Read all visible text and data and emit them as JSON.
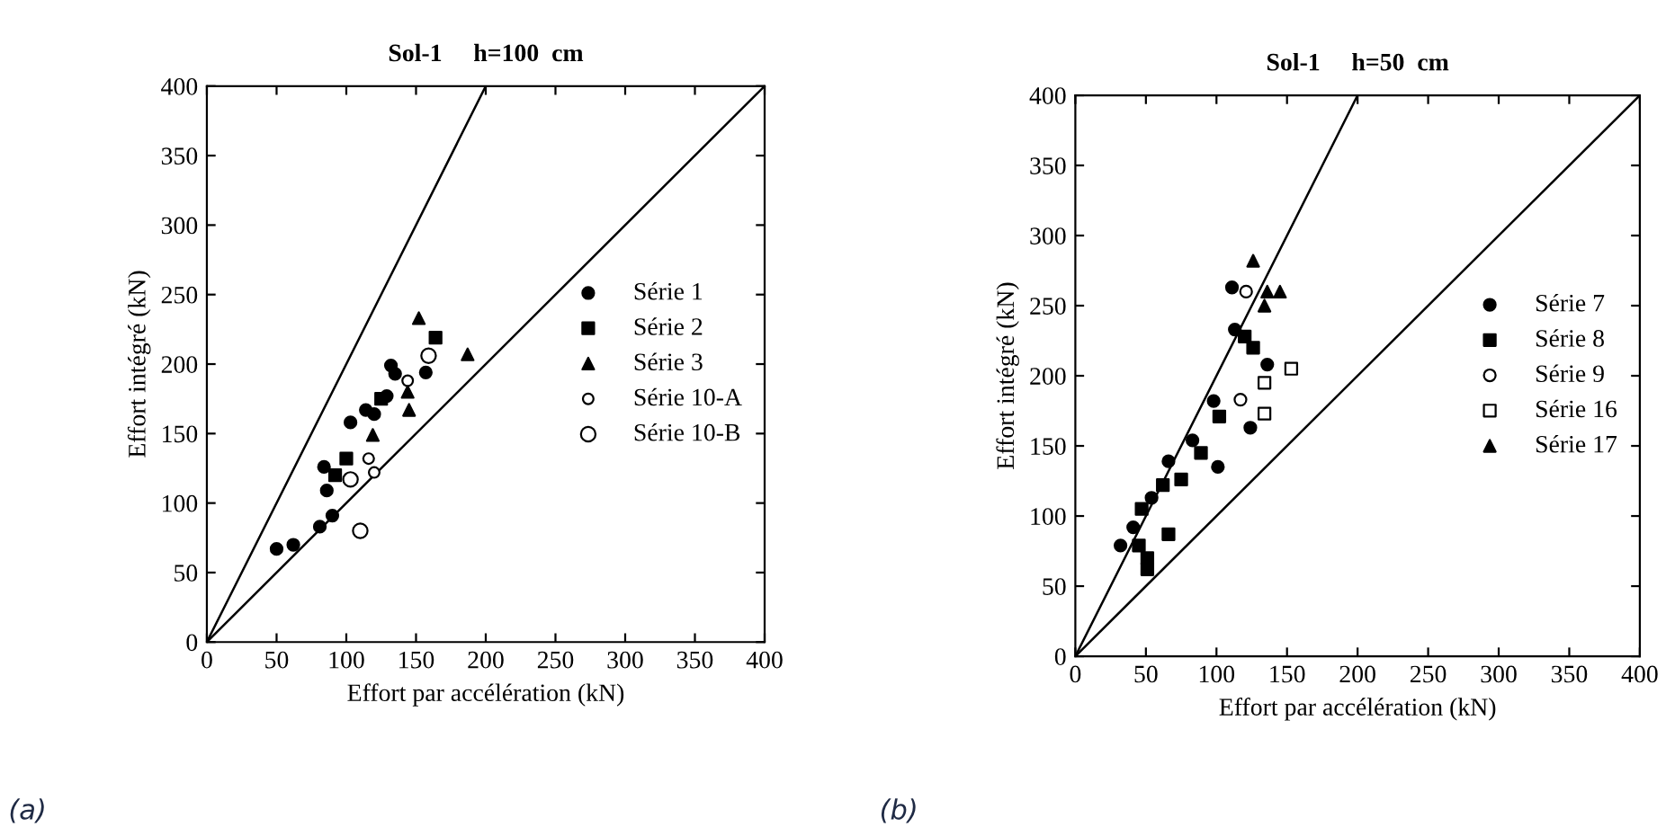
{
  "chart_data": [
    {
      "type": "scatter",
      "title": "Sol-1     h=100  cm",
      "xlabel": "Effort par accélération (kN)",
      "ylabel": "Effort intégré (kN)",
      "xlim": [
        0,
        400
      ],
      "ylim": [
        0,
        400
      ],
      "xticks": [
        0,
        50,
        100,
        150,
        200,
        250,
        300,
        350,
        400
      ],
      "yticks": [
        0,
        50,
        100,
        150,
        200,
        250,
        300,
        350,
        400
      ],
      "grid": false,
      "legend": "center right",
      "annotations": [
        "(a)"
      ],
      "series": [
        {
          "name": "Série 1",
          "color": "#000000",
          "marker": "circle",
          "x": [
            50,
            62,
            81,
            90,
            86,
            84,
            97,
            103,
            114,
            120,
            129,
            132,
            135,
            157
          ],
          "values": [
            67,
            70,
            83,
            91,
            109,
            126,
            null,
            158,
            167,
            164,
            177,
            199,
            193,
            194
          ]
        },
        {
          "name": "Série 2",
          "color": "#000000",
          "marker": "square",
          "x": [
            100,
            164,
            92,
            125
          ],
          "values": [
            132,
            219,
            120,
            175
          ]
        },
        {
          "name": "Série 3",
          "color": "#000000",
          "marker": "triangle",
          "x": [
            119,
            144,
            145,
            152,
            187
          ],
          "values": [
            149,
            180,
            167,
            233,
            207
          ]
        },
        {
          "name": "Série 10-A",
          "color": "#000000",
          "marker": "circle",
          "x": [
            116,
            120,
            144
          ],
          "values": [
            132,
            122,
            188
          ]
        },
        {
          "name": "Série 10-B",
          "color": "#000000",
          "marker": "circle",
          "x": [
            103,
            110,
            159
          ],
          "values": [
            117,
            80,
            206
          ]
        },
        {
          "type": "line",
          "color": "#000000",
          "x": [
            0,
            200
          ],
          "values": [
            0,
            400
          ]
        },
        {
          "type": "line",
          "color": "#000000",
          "x": [
            0,
            400
          ],
          "values": [
            0,
            400
          ]
        }
      ]
    },
    {
      "type": "scatter",
      "title": "Sol-1     h=50  cm",
      "xlabel": "Effort par accélération (kN)",
      "ylabel": "Effort intégré (kN)",
      "xlim": [
        0,
        400
      ],
      "ylim": [
        0,
        400
      ],
      "xticks": [
        0,
        50,
        100,
        150,
        200,
        250,
        300,
        350,
        400
      ],
      "yticks": [
        0,
        50,
        100,
        150,
        200,
        250,
        300,
        350,
        400
      ],
      "grid": false,
      "legend": "center right",
      "annotations": [
        "(b)"
      ],
      "series": [
        {
          "name": "Série 7",
          "color": "#000000",
          "marker": "circle",
          "x": [
            111,
            113,
            136,
            98,
            124,
            83,
            101,
            66,
            54,
            41,
            32
          ],
          "values": [
            263,
            233,
            208,
            182,
            163,
            154,
            135,
            139,
            113,
            92,
            79
          ]
        },
        {
          "name": "Série 8",
          "color": "#000000",
          "marker": "square",
          "x": [
            120,
            126,
            102,
            89,
            75,
            62,
            47,
            66,
            45,
            51,
            51
          ],
          "values": [
            228,
            220,
            171,
            145,
            126,
            122,
            105,
            87,
            79,
            70,
            62
          ]
        },
        {
          "name": "Série 9",
          "color": "#000000",
          "marker": "circle",
          "x": [
            121,
            117
          ],
          "values": [
            260,
            183
          ]
        },
        {
          "name": "Série 16",
          "color": "#000000",
          "marker": "square",
          "x": [
            153,
            134,
            134
          ],
          "values": [
            205,
            195,
            173
          ]
        },
        {
          "name": "Série 17",
          "color": "#000000",
          "marker": "triangle",
          "x": [
            136,
            145,
            134,
            126
          ],
          "values": [
            260,
            260,
            250,
            282
          ]
        },
        {
          "type": "line",
          "color": "#000000",
          "x": [
            0,
            200
          ],
          "values": [
            0,
            400
          ]
        },
        {
          "type": "line",
          "color": "#000000",
          "x": [
            0,
            400
          ],
          "values": [
            0,
            400
          ]
        }
      ]
    }
  ]
}
